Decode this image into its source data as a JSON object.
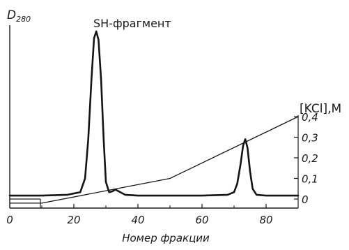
{
  "chart_data": {
    "type": "line",
    "left_axis_label": "D",
    "left_axis_label_sub": "280",
    "right_axis_label": "[KCl],M",
    "xlabel": "Номер фракции",
    "peak_annotation": "SH-фрагмент",
    "xlim": [
      0,
      90
    ],
    "x_ticks": [
      {
        "value": 0,
        "label": "0"
      },
      {
        "value": 20,
        "label": "20"
      },
      {
        "value": 40,
        "label": "40"
      },
      {
        "value": 60,
        "label": "60"
      },
      {
        "value": 80,
        "label": "80"
      }
    ],
    "right_ylim": [
      0,
      0.4
    ],
    "right_ticks": [
      {
        "value": 0,
        "label": "0"
      },
      {
        "value": 0.1,
        "label": "0,1"
      },
      {
        "value": 0.2,
        "label": "0,2"
      },
      {
        "value": 0.3,
        "label": "0,3"
      },
      {
        "value": 0.4,
        "label": "0,4"
      }
    ],
    "left_ylim": [
      0,
      1
    ],
    "series": [
      {
        "kind": "absorbance",
        "axis": "left",
        "x": [
          0,
          10,
          18,
          22,
          23.5,
          24.5,
          25.5,
          26.3,
          27,
          27.7,
          28.5,
          29.3,
          30,
          31,
          32,
          33,
          34,
          36,
          40,
          50,
          60,
          68,
          70,
          71,
          72,
          72.8,
          73.5,
          74.2,
          75,
          75.8,
          77,
          80,
          90
        ],
        "y": [
          0.02,
          0.02,
          0.025,
          0.04,
          0.12,
          0.35,
          0.7,
          0.94,
          0.98,
          0.93,
          0.7,
          0.35,
          0.1,
          0.04,
          0.045,
          0.055,
          0.045,
          0.025,
          0.02,
          0.02,
          0.02,
          0.025,
          0.04,
          0.09,
          0.2,
          0.31,
          0.35,
          0.3,
          0.16,
          0.06,
          0.025,
          0.02,
          0.02
        ]
      },
      {
        "kind": "kcl_gradient",
        "axis": "right",
        "x": [
          0,
          10,
          50,
          90
        ],
        "y": [
          -0.02,
          -0.02,
          0.1,
          0.4
        ]
      }
    ]
  }
}
